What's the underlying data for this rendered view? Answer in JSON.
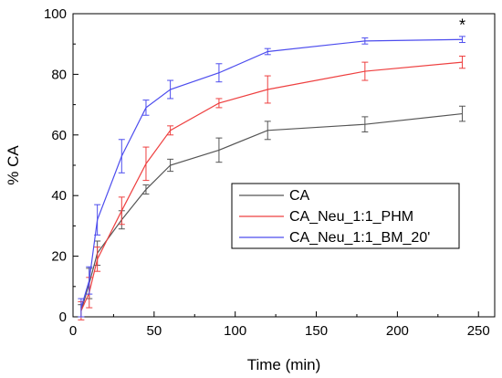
{
  "chart_data": {
    "type": "line",
    "title": "",
    "xlabel": "Time (min)",
    "ylabel": "% CA",
    "xlim": [
      0,
      260
    ],
    "ylim": [
      0,
      100
    ],
    "xticks": [
      0,
      50,
      100,
      150,
      200,
      250
    ],
    "yticks": [
      0,
      20,
      40,
      60,
      80,
      100
    ],
    "grid": false,
    "legend_position": "center-right",
    "annotation": {
      "text": "*",
      "x": 240,
      "y": 98
    },
    "x": [
      5,
      10,
      15,
      30,
      45,
      60,
      90,
      120,
      180,
      240
    ],
    "series": [
      {
        "name": "CA",
        "color": "#555555",
        "values": [
          2,
          11,
          21,
          32,
          42,
          50,
          55,
          61.5,
          63.5,
          67
        ],
        "errors": [
          2,
          5,
          4,
          3,
          1.5,
          2,
          4,
          3,
          2.5,
          2.5
        ]
      },
      {
        "name": "CA_Neu_1:1_PHM",
        "color": "#ee4040",
        "values": [
          2,
          8,
          19,
          35,
          50.5,
          61.5,
          70.5,
          75,
          81,
          84
        ],
        "errors": [
          3,
          5,
          4,
          4.5,
          5.5,
          1.5,
          1.5,
          4.5,
          3,
          2
        ]
      },
      {
        "name": "CA_Neu_1:1_BM_20'",
        "color": "#4d4dee",
        "values": [
          3,
          12,
          32,
          53,
          69,
          75,
          80.5,
          87.5,
          91,
          91.5
        ],
        "errors": [
          3,
          4.5,
          5,
          5.5,
          2.5,
          3,
          3,
          1,
          1,
          1
        ]
      }
    ]
  }
}
